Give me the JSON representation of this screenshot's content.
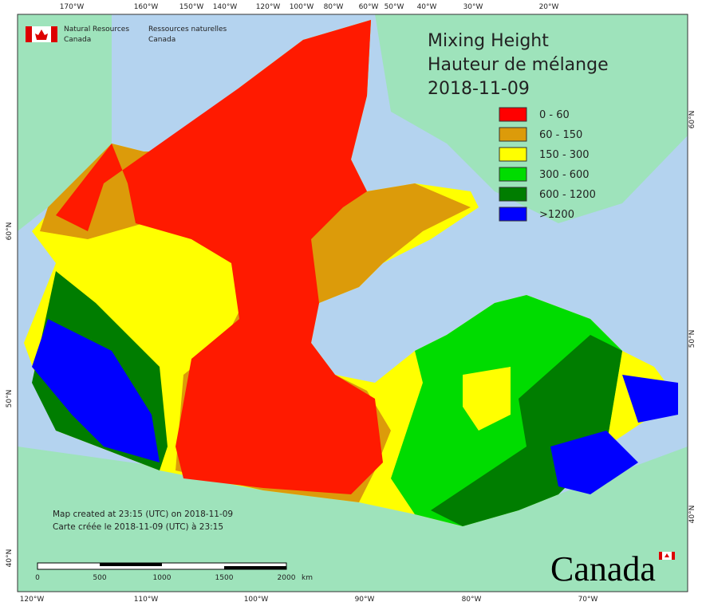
{
  "header": {
    "department_en": [
      "Natural Resources",
      "Canada"
    ],
    "department_fr": [
      "Ressources naturelles",
      "Canada"
    ]
  },
  "title": {
    "lines": [
      "Mixing Height",
      "Hauteur de mélange",
      "2018-11-09"
    ]
  },
  "legend": [
    {
      "label": "0 - 60",
      "color": "#ff0000"
    },
    {
      "label": "60 - 150",
      "color": "#dc9b0a"
    },
    {
      "label": "150 - 300",
      "color": "#ffff00"
    },
    {
      "label": "300 - 600",
      "color": "#00dc00"
    },
    {
      "label": "600 - 1200",
      "color": "#007d00"
    },
    {
      "label": ">1200",
      "color": "#0000ff"
    }
  ],
  "graticule": {
    "top": [
      "170°W",
      "160°W",
      "150°W",
      "140°W",
      "120°W",
      "100°W",
      "80°W",
      "60°W",
      "50°W",
      "40°W",
      "30°W",
      "20°W"
    ],
    "bottom": [
      "120°W",
      "110°W",
      "100°W",
      "90°W",
      "80°W",
      "70°W"
    ],
    "left": [
      "60°N",
      "50°N",
      "40°N"
    ],
    "right": [
      "60°N",
      "50°N",
      "40°N"
    ]
  },
  "notes": [
    "Map created at 23:15 (UTC) on 2018-11-09",
    "Carte créée le 2018-11-09 (UTC) à 23:15"
  ],
  "scale_bar": {
    "labels": [
      "0",
      "500",
      "1000",
      "1500",
      "2000"
    ],
    "unit": "km"
  },
  "wordmark": "Canada"
}
